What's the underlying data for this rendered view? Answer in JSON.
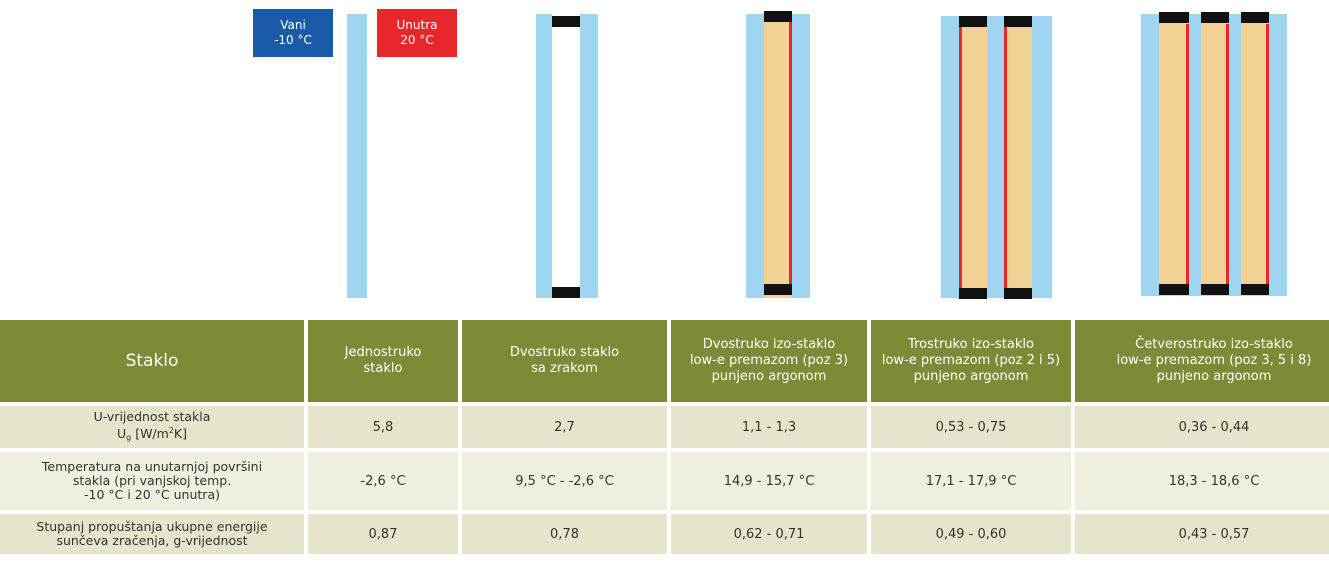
{
  "labels": {
    "outside": {
      "line1": "Vani",
      "line2": "-10 °C"
    },
    "inside": {
      "line1": "Unutra",
      "line2": "20 °C"
    }
  },
  "colors": {
    "outside_badge": "#1a5aa8",
    "inside_badge": "#e8262c",
    "glass": "#9fd5f0",
    "argon_fill": "#f2d195",
    "low_e_coating": "#e8262c",
    "spacer": "#111111",
    "header_bg": "#7f8a36",
    "row_bg": "#e6e4cb"
  },
  "glazing_types": [
    {
      "panes": 1,
      "cavities": 0,
      "fill": "none"
    },
    {
      "panes": 2,
      "cavities": 1,
      "fill": "air",
      "low_e": false
    },
    {
      "panes": 2,
      "cavities": 1,
      "fill": "argon",
      "low_e": true
    },
    {
      "panes": 3,
      "cavities": 2,
      "fill": "argon",
      "low_e": true
    },
    {
      "panes": 4,
      "cavities": 3,
      "fill": "argon",
      "low_e": true
    }
  ],
  "table": {
    "header": {
      "staklo": "Staklo",
      "col1": {
        "l1": "Jednostruko",
        "l2": "staklo"
      },
      "col2": {
        "l1": "Dvostruko staklo",
        "l2": "sa zrakom"
      },
      "col3": {
        "l1": "Dvostruko izo-staklo",
        "l2": "low-e premazom (poz 3)",
        "l3": "punjeno argonom"
      },
      "col4": {
        "l1": "Trostruko izo-staklo",
        "l2": "low-e premazom (poz 2 i 5)",
        "l3": "punjeno argonom"
      },
      "col5": {
        "l1": "Četverostruko izo-staklo",
        "l2": "low-e premazom (poz 3, 5 i 8)",
        "l3": "punjeno argonom"
      }
    },
    "rows": [
      {
        "label": {
          "l1": "U-vrijednost stakla",
          "sym": "U",
          "sub": "g",
          "unit_a": " [W/m",
          "sup": "2",
          "unit_b": "K]"
        },
        "values": [
          "5,8",
          "2,7",
          "1,1 - 1,3",
          "0,53 - 0,75",
          "0,36 - 0,44"
        ]
      },
      {
        "label": {
          "l1": "Temperatura na unutarnjoj površini",
          "l2": "stakla (pri vanjskoj temp.",
          "l3": "-10 °C i 20 °C unutra)"
        },
        "values": [
          "-2,6 °C",
          "9,5 °C - -2,6 °C",
          "14,9 - 15,7 °C",
          "17,1 - 17,9 °C",
          "18,3 - 18,6 °C"
        ]
      },
      {
        "label": {
          "l1": "Stupanj propuštanja ukupne energije",
          "l2": "sunčeva zračenja, g-vrijednost"
        },
        "values": [
          "0,87",
          "0,78",
          "0,62 - 0,71",
          "0,49 - 0,60",
          "0,43 - 0,57"
        ]
      }
    ]
  }
}
